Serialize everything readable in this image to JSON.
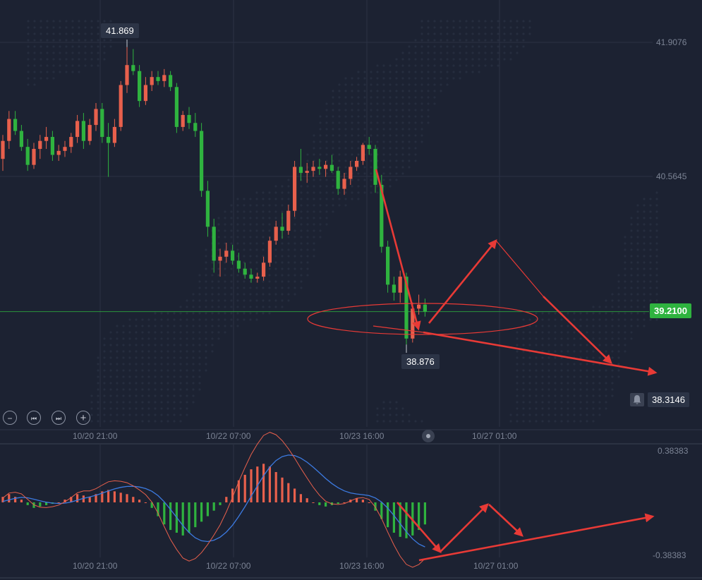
{
  "chart_data": {
    "type": "candlestick",
    "price_axis": {
      "ticks": [
        "41.9076",
        "40.5645"
      ],
      "range": [
        37.9,
        42.2
      ]
    },
    "time_axis": {
      "labels": [
        "10/20 21:00",
        "10/22 07:00",
        "10/23 16:00",
        "10/27 01:00"
      ]
    },
    "annotations": {
      "high_label": "41.869",
      "low_label": "38.876"
    },
    "current_price": "39.2100",
    "alert_price": "38.3146",
    "candles": [
      [
        40.74,
        40.98,
        40.62,
        40.92
      ],
      [
        40.92,
        41.22,
        40.84,
        41.14
      ],
      [
        41.14,
        41.22,
        40.98,
        41.02
      ],
      [
        41.02,
        41.08,
        40.82,
        40.86
      ],
      [
        40.86,
        40.94,
        40.62,
        40.68
      ],
      [
        40.68,
        40.9,
        40.64,
        40.84
      ],
      [
        40.84,
        40.98,
        40.74,
        40.92
      ],
      [
        40.92,
        41.06,
        40.84,
        40.96
      ],
      [
        40.96,
        41.02,
        40.72,
        40.78
      ],
      [
        40.78,
        40.88,
        40.72,
        40.82
      ],
      [
        40.82,
        40.92,
        40.76,
        40.86
      ],
      [
        40.86,
        41.0,
        40.8,
        40.96
      ],
      [
        40.96,
        41.18,
        40.9,
        41.12
      ],
      [
        41.12,
        41.2,
        40.84,
        40.92
      ],
      [
        40.92,
        41.14,
        40.88,
        41.08
      ],
      [
        41.08,
        41.3,
        41.02,
        41.24
      ],
      [
        41.24,
        41.3,
        40.9,
        40.96
      ],
      [
        40.96,
        41.1,
        40.56,
        40.9
      ],
      [
        40.9,
        41.14,
        40.86,
        41.06
      ],
      [
        41.06,
        41.52,
        41.02,
        41.48
      ],
      [
        41.48,
        41.86,
        41.4,
        41.68
      ],
      [
        41.68,
        41.84,
        41.58,
        41.62
      ],
      [
        41.62,
        41.68,
        41.26,
        41.32
      ],
      [
        41.32,
        41.56,
        41.28,
        41.48
      ],
      [
        41.48,
        41.62,
        41.42,
        41.56
      ],
      [
        41.56,
        41.62,
        41.48,
        41.52
      ],
      [
        41.52,
        41.64,
        41.46,
        41.58
      ],
      [
        41.58,
        41.62,
        41.42,
        41.46
      ],
      [
        41.46,
        41.5,
        41.0,
        41.06
      ],
      [
        41.06,
        41.22,
        41.02,
        41.18
      ],
      [
        41.18,
        41.26,
        41.04,
        41.1
      ],
      [
        41.1,
        41.2,
        40.96,
        41.02
      ],
      [
        41.02,
        41.1,
        40.36,
        40.42
      ],
      [
        40.42,
        40.52,
        39.96,
        40.06
      ],
      [
        40.06,
        40.14,
        39.6,
        39.72
      ],
      [
        39.72,
        39.84,
        39.56,
        39.76
      ],
      [
        39.76,
        39.9,
        39.7,
        39.82
      ],
      [
        39.82,
        39.88,
        39.68,
        39.72
      ],
      [
        39.72,
        39.8,
        39.6,
        39.64
      ],
      [
        39.64,
        39.7,
        39.54,
        39.58
      ],
      [
        39.58,
        39.64,
        39.5,
        39.54
      ],
      [
        39.54,
        39.6,
        39.5,
        39.56
      ],
      [
        39.56,
        39.76,
        39.52,
        39.7
      ],
      [
        39.7,
        39.96,
        39.66,
        39.92
      ],
      [
        39.92,
        40.12,
        39.88,
        40.06
      ],
      [
        40.06,
        40.2,
        39.94,
        40.02
      ],
      [
        40.02,
        40.28,
        39.98,
        40.22
      ],
      [
        40.22,
        40.72,
        40.16,
        40.66
      ],
      [
        40.66,
        40.84,
        40.52,
        40.6
      ],
      [
        40.6,
        40.7,
        40.5,
        40.62
      ],
      [
        40.62,
        40.72,
        40.56,
        40.66
      ],
      [
        40.66,
        40.74,
        40.58,
        40.64
      ],
      [
        40.64,
        40.72,
        40.56,
        40.68
      ],
      [
        40.68,
        40.78,
        40.6,
        40.62
      ],
      [
        40.62,
        40.66,
        40.38,
        40.44
      ],
      [
        40.44,
        40.6,
        40.38,
        40.54
      ],
      [
        40.54,
        40.72,
        40.48,
        40.66
      ],
      [
        40.66,
        40.76,
        40.62,
        40.72
      ],
      [
        40.72,
        40.9,
        40.68,
        40.88
      ],
      [
        40.88,
        40.96,
        40.78,
        40.84
      ],
      [
        40.84,
        40.88,
        40.4,
        40.48
      ],
      [
        40.48,
        40.58,
        39.8,
        39.86
      ],
      [
        39.86,
        39.92,
        39.4,
        39.48
      ],
      [
        39.48,
        39.56,
        39.32,
        39.4
      ],
      [
        39.4,
        39.62,
        39.3,
        39.56
      ],
      [
        39.56,
        39.6,
        38.88,
        38.94
      ],
      [
        38.94,
        39.3,
        38.9,
        39.24
      ],
      [
        39.24,
        39.38,
        39.18,
        39.28
      ],
      [
        39.28,
        39.34,
        39.16,
        39.21
      ]
    ],
    "macd_indicator": {
      "range_labels": [
        "0.38383",
        "-0.38383"
      ],
      "time_labels": [
        "10/20 21:00",
        "10/22 07:00",
        "10/23 16:00",
        "10/27 01:00"
      ],
      "histogram": [
        0.04,
        0.06,
        0.04,
        0.02,
        -0.02,
        -0.04,
        -0.03,
        -0.02,
        -0.01,
        0.0,
        0.02,
        0.04,
        0.06,
        0.05,
        0.04,
        0.06,
        0.08,
        0.09,
        0.08,
        0.07,
        0.06,
        0.04,
        0.02,
        0.0,
        -0.04,
        -0.1,
        -0.16,
        -0.2,
        -0.22,
        -0.24,
        -0.22,
        -0.18,
        -0.14,
        -0.1,
        -0.06,
        -0.02,
        0.04,
        0.1,
        0.16,
        0.2,
        0.24,
        0.26,
        0.28,
        0.26,
        0.22,
        0.18,
        0.14,
        0.1,
        0.06,
        0.03,
        0.0,
        -0.02,
        -0.03,
        -0.02,
        -0.01,
        0.0,
        0.02,
        0.03,
        0.02,
        0.0,
        -0.06,
        -0.12,
        -0.18,
        -0.22,
        -0.25,
        -0.26,
        -0.24,
        -0.2,
        -0.16
      ]
    },
    "colors": {
      "up": "#e8604c",
      "down": "#2fb33f",
      "drawing": "#e83a36",
      "macd_line": "#3c7ae0",
      "signal_line": "#e8604c"
    }
  },
  "controls": {
    "zoom_out": "−",
    "prev": "⏮",
    "next": "⏭",
    "zoom_in": "+"
  }
}
